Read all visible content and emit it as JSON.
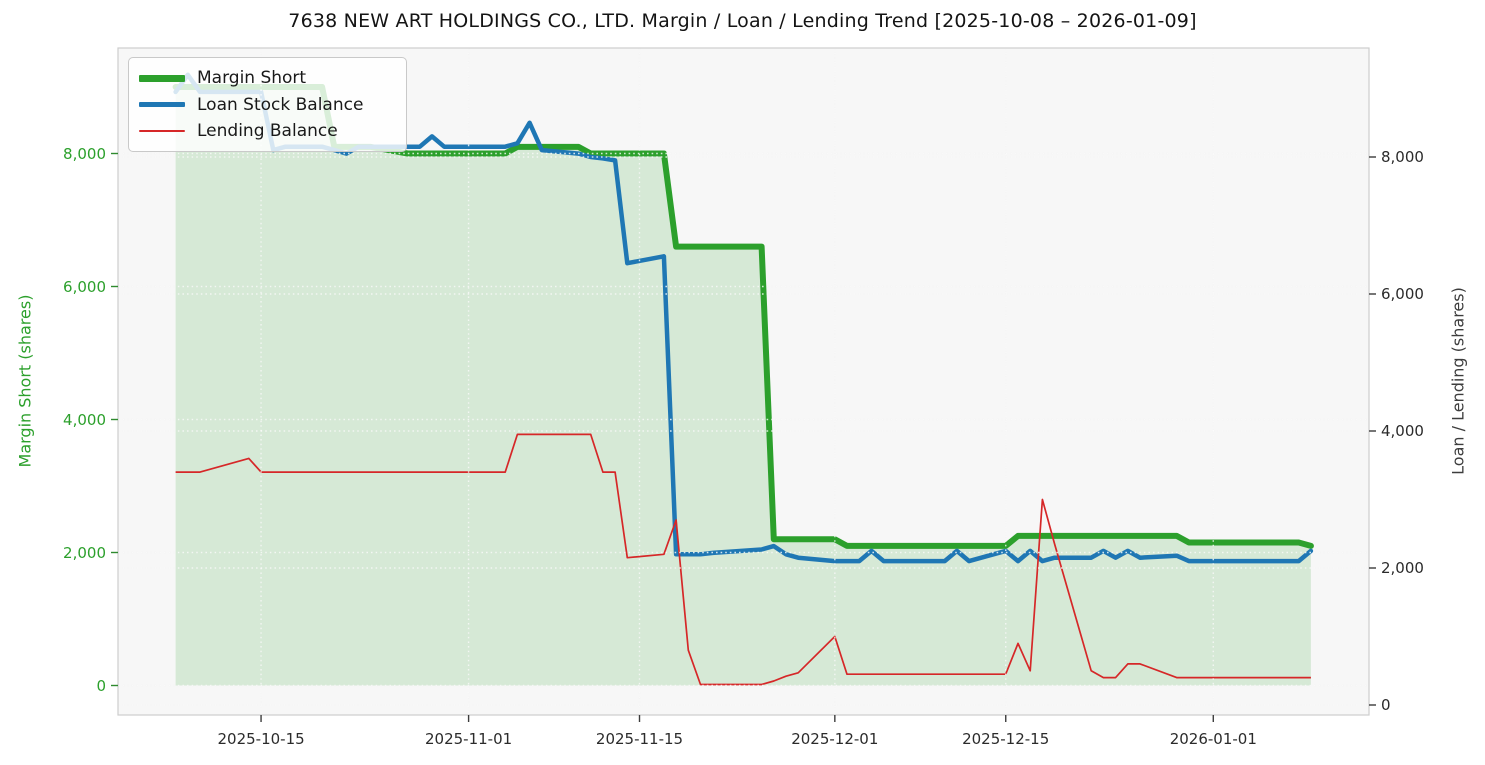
{
  "chart_data": {
    "type": "line",
    "title": "7638 NEW ART HOLDINGS CO., LTD. Margin / Loan / Lending Trend [2025-10-08 – 2026-01-09]",
    "date_range": {
      "start": "2025-10-08",
      "end": "2026-01-09"
    },
    "grid": "dotted gridlines for both y-axes and month x-ticks",
    "legend": {
      "position": "upper left",
      "entries": [
        {
          "label": "Margin Short",
          "color": "#2ca02c",
          "line_width": 7
        },
        {
          "label": "Loan Stock Balance",
          "color": "#1f77b4",
          "line_width": 5
        },
        {
          "label": "Lending Balance",
          "color": "#d62728",
          "line_width": 2
        }
      ]
    },
    "left_axis": {
      "label": "Margin Short (shares)",
      "color": "#2ca02c",
      "ticks": [
        0,
        2000,
        4000,
        6000,
        8000
      ],
      "tick_labels": [
        "0",
        "2,000",
        "4,000",
        "6,000",
        "8,000"
      ]
    },
    "right_axis": {
      "label": "Loan / Lending (shares)",
      "color": "#3d3d3d",
      "ticks": [
        0,
        2000,
        4000,
        6000,
        8000
      ],
      "tick_labels": [
        "0",
        "2,000",
        "4,000",
        "6,000",
        "8,000"
      ]
    },
    "x_axis": {
      "tick_labels": [
        "2025-10-15",
        "2025-11-01",
        "2025-11-15",
        "2025-12-01",
        "2025-12-15",
        "2026-01-01"
      ],
      "tick_day_offsets": [
        7,
        24,
        38,
        54,
        68,
        85
      ]
    },
    "dates": [
      "2025-10-08",
      "2025-10-09",
      "2025-10-10",
      "2025-10-14",
      "2025-10-15",
      "2025-10-16",
      "2025-10-17",
      "2025-10-20",
      "2025-10-21",
      "2025-10-22",
      "2025-10-23",
      "2025-10-24",
      "2025-10-27",
      "2025-10-28",
      "2025-10-29",
      "2025-10-30",
      "2025-10-31",
      "2025-11-04",
      "2025-11-05",
      "2025-11-06",
      "2025-11-07",
      "2025-11-10",
      "2025-11-11",
      "2025-11-12",
      "2025-11-13",
      "2025-11-14",
      "2025-11-17",
      "2025-11-18",
      "2025-11-19",
      "2025-11-20",
      "2025-11-21",
      "2025-11-25",
      "2025-11-26",
      "2025-11-27",
      "2025-11-28",
      "2025-12-01",
      "2025-12-02",
      "2025-12-03",
      "2025-12-04",
      "2025-12-05",
      "2025-12-08",
      "2025-12-09",
      "2025-12-10",
      "2025-12-11",
      "2025-12-12",
      "2025-12-15",
      "2025-12-16",
      "2025-12-17",
      "2025-12-18",
      "2025-12-19",
      "2025-12-22",
      "2025-12-23",
      "2025-12-24",
      "2025-12-25",
      "2025-12-26",
      "2025-12-29",
      "2025-12-30",
      "2026-01-05",
      "2026-01-06",
      "2026-01-07",
      "2026-01-08",
      "2026-01-09"
    ],
    "day_offsets": [
      0,
      1,
      2,
      6,
      7,
      8,
      9,
      12,
      13,
      14,
      15,
      16,
      19,
      20,
      21,
      22,
      23,
      27,
      28,
      29,
      30,
      33,
      34,
      35,
      36,
      37,
      40,
      41,
      42,
      43,
      44,
      48,
      49,
      50,
      51,
      54,
      55,
      56,
      57,
      58,
      61,
      62,
      63,
      64,
      65,
      68,
      69,
      70,
      71,
      72,
      75,
      76,
      77,
      78,
      79,
      82,
      83,
      89,
      90,
      91,
      92,
      93
    ],
    "series": [
      {
        "name": "Margin Short",
        "axis": "left",
        "color": "#2ca02c",
        "line_width": 6,
        "fill": "rgba(44,160,44,0.16)",
        "values": [
          9000,
          9000,
          9000,
          9000,
          9000,
          9000,
          9000,
          9000,
          8100,
          8100,
          8100,
          8100,
          8000,
          8000,
          8000,
          8000,
          8000,
          8000,
          8100,
          8100,
          8100,
          8100,
          8000,
          8000,
          8000,
          8000,
          8000,
          6600,
          6600,
          6600,
          6600,
          6600,
          2200,
          2200,
          2200,
          2200,
          2100,
          2100,
          2100,
          2100,
          2100,
          2100,
          2100,
          2100,
          2100,
          2100,
          2250,
          2250,
          2250,
          2250,
          2250,
          2250,
          2250,
          2250,
          2250,
          2250,
          2150,
          2150,
          2150,
          2150,
          2150,
          2100
        ]
      },
      {
        "name": "Loan Stock Balance",
        "axis": "right",
        "color": "#1f77b4",
        "line_width": 4.5,
        "fill": null,
        "values": [
          8950,
          9200,
          8950,
          8950,
          8950,
          8100,
          8150,
          8150,
          8100,
          8050,
          8150,
          8150,
          8150,
          8150,
          8300,
          8150,
          8150,
          8150,
          8200,
          8500,
          8100,
          8050,
          8000,
          7980,
          7950,
          6450,
          6550,
          2200,
          2200,
          2200,
          2220,
          2270,
          2320,
          2200,
          2150,
          2100,
          2100,
          2100,
          2250,
          2100,
          2100,
          2100,
          2100,
          2250,
          2100,
          2250,
          2100,
          2250,
          2100,
          2150,
          2150,
          2250,
          2150,
          2250,
          2150,
          2180,
          2100,
          2100,
          2100,
          2100,
          2100,
          2250
        ]
      },
      {
        "name": "Lending Balance",
        "axis": "right",
        "color": "#d62728",
        "line_width": 1.7,
        "fill": null,
        "values": [
          3400,
          3400,
          3400,
          3600,
          3400,
          3400,
          3400,
          3400,
          3400,
          3400,
          3400,
          3400,
          3400,
          3400,
          3400,
          3400,
          3400,
          3400,
          3950,
          3950,
          3950,
          3950,
          3950,
          3400,
          3400,
          2150,
          2200,
          2700,
          800,
          300,
          300,
          300,
          350,
          420,
          470,
          1000,
          450,
          450,
          450,
          450,
          450,
          450,
          450,
          450,
          450,
          450,
          900,
          500,
          3000,
          2350,
          500,
          400,
          400,
          600,
          600,
          400,
          400,
          400,
          400,
          400,
          400,
          400
        ]
      }
    ]
  }
}
